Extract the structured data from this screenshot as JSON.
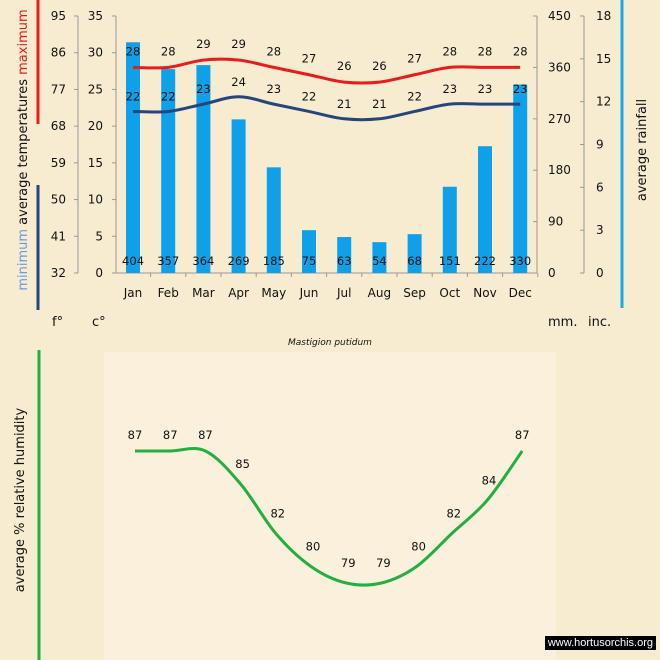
{
  "chart_data": [
    {
      "type": "bar",
      "title": "Mastigion putidum",
      "categories": [
        "Jan",
        "Feb",
        "Mar",
        "Apr",
        "May",
        "Jun",
        "Jul",
        "Aug",
        "Sep",
        "Oct",
        "Nov",
        "Dec"
      ],
      "series": [
        {
          "name": "average rainfall (mm)",
          "type": "bar",
          "axis": "mm",
          "color": "#0ea0e8",
          "values": [
            404,
            357,
            364,
            269,
            185,
            75,
            63,
            54,
            68,
            151,
            222,
            330
          ]
        },
        {
          "name": "maximum",
          "type": "line",
          "axis": "celsius",
          "color": "#e81c1c",
          "values": [
            28,
            28,
            29,
            29,
            28,
            27,
            26,
            26,
            27,
            28,
            28,
            28
          ]
        },
        {
          "name": "minimum",
          "type": "line",
          "axis": "celsius",
          "color": "#26457c",
          "values": [
            22,
            22,
            23,
            24,
            23,
            22,
            21,
            21,
            22,
            23,
            23,
            23
          ]
        }
      ],
      "axes": {
        "fahrenheit": {
          "unit_label": "f°",
          "ticks": [
            "95",
            "86",
            "77",
            "68",
            "59",
            "50",
            "41",
            "32"
          ]
        },
        "celsius": {
          "unit_label": "c°",
          "ticks": [
            "35",
            "30",
            "25",
            "20",
            "15",
            "10",
            "5",
            "0"
          ],
          "ylim": [
            0,
            35
          ]
        },
        "mm": {
          "unit_label": "mm.",
          "ticks": [
            "450",
            "360",
            "270",
            "180",
            "90",
            "0"
          ],
          "ylim": [
            0,
            450
          ]
        },
        "inches": {
          "unit_label": "inc.",
          "ticks": [
            "18",
            "15",
            "12",
            "9",
            "6",
            "3",
            "0"
          ]
        }
      },
      "ylabel_left": {
        "minimum": "minimum",
        "average": "average  temperatures",
        "maximum": "maximum"
      },
      "ylabel_right": "average rainfall"
    },
    {
      "type": "line",
      "categories": [
        "Jan",
        "Feb",
        "Mar",
        "Apr",
        "May",
        "Jun",
        "Jul",
        "Aug",
        "Sep",
        "Oct",
        "Nov",
        "Dec"
      ],
      "series": [
        {
          "name": "average % relative humidity",
          "color": "#22b040",
          "values": [
            87,
            87,
            87,
            85,
            82,
            80,
            79,
            79,
            80,
            82,
            84,
            87
          ]
        }
      ],
      "ylabel": "average %   relative humidity",
      "ylim": [
        79,
        87
      ]
    }
  ],
  "watermark": "www.hortusorchis.org"
}
